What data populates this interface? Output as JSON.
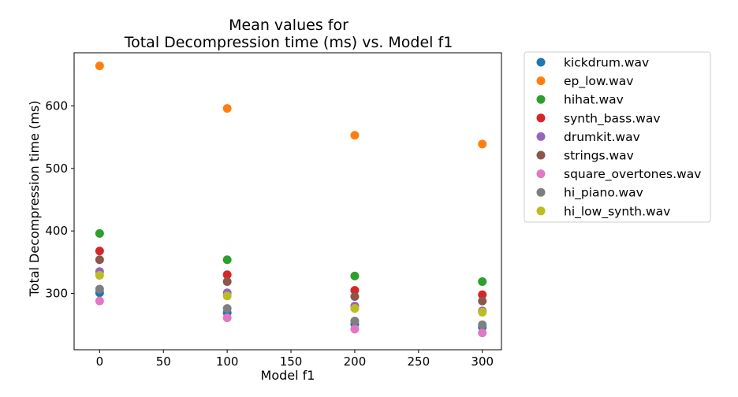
{
  "chart_data": {
    "type": "scatter",
    "title_line1": "Mean values for",
    "title_line2": "Total Decompression time (ms) vs. Model f1",
    "xlabel": "Model f1",
    "ylabel": "Total Decompression time (ms)",
    "xlim": [
      -20,
      315
    ],
    "ylim": [
      210,
      685
    ],
    "xticks": [
      0,
      50,
      100,
      150,
      200,
      250,
      300
    ],
    "yticks": [
      300,
      400,
      500,
      600
    ],
    "grid": false,
    "legend_placement": "outside-right",
    "x": [
      0,
      100,
      200,
      300
    ],
    "series": [
      {
        "name": "kickdrum.wav",
        "color": "#1f77b4",
        "values": [
          301,
          269,
          251,
          246
        ]
      },
      {
        "name": "ep_low.wav",
        "color": "#ff7f0e",
        "values": [
          664,
          596,
          553,
          539
        ]
      },
      {
        "name": "hihat.wav",
        "color": "#2ca02c",
        "values": [
          396,
          354,
          328,
          319
        ]
      },
      {
        "name": "synth_bass.wav",
        "color": "#d62728",
        "values": [
          368,
          330,
          305,
          298
        ]
      },
      {
        "name": "drumkit.wav",
        "color": "#9467bd",
        "values": [
          335,
          301,
          280,
          272
        ]
      },
      {
        "name": "strings.wav",
        "color": "#8c564b",
        "values": [
          354,
          319,
          295,
          288
        ]
      },
      {
        "name": "square_overtones.wav",
        "color": "#e377c2",
        "values": [
          288,
          261,
          243,
          237
        ]
      },
      {
        "name": "hi_piano.wav",
        "color": "#7f7f7f",
        "values": [
          307,
          276,
          256,
          250
        ]
      },
      {
        "name": "hi_low_synth.wav",
        "color": "#bcbd22",
        "values": [
          329,
          296,
          276,
          270
        ]
      }
    ]
  }
}
